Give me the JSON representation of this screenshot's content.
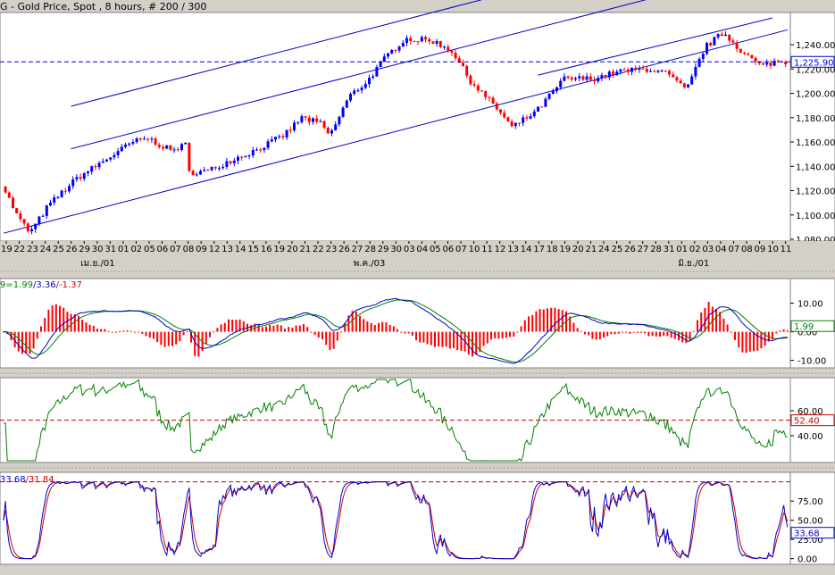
{
  "chart_title": "G - Gold Price, Spot , 8 hours, # 200 / 300",
  "colors": {
    "panel_bg": "#ffffff",
    "outer_bg": "#d4d0c8",
    "bull_candle": "#0000ff",
    "bear_candle": "#ff0000",
    "channel_line": "#0000cc",
    "price_ref_line": "#0000cc",
    "macd_line": "#0000cc",
    "macd_signal": "#008000",
    "macd_hist": "#ff0000",
    "rsi_line": "#008000",
    "rsi_ref_line": "#cc0000",
    "stoch_k": "#0000cc",
    "stoch_d": "#cc0000",
    "stoch_ref_line": "#cc0000"
  },
  "chart_data": [
    {
      "type": "candlestick",
      "title": "G - Gold Price, Spot , 8 hours, # 200 / 300",
      "ylim": [
        1080,
        1265
      ],
      "y_ticks": [
        1080,
        1100,
        1120,
        1140,
        1160,
        1180,
        1200,
        1220,
        1240
      ],
      "y_tick_labels": [
        "1,080.00",
        "1,100.00",
        "1,120.00",
        "1,140.00",
        "1,160.00",
        "1,180.00",
        "1,200.00",
        "1,220.00",
        "1,240.00"
      ],
      "current_price_label": "1,225.90",
      "current_price": 1225.9,
      "channel": {
        "slope": 0.4,
        "lower_start": 1085,
        "middle_start": 1140,
        "upper_start": 1175
      },
      "x_date_labels": [
        "19",
        "22",
        "23",
        "24",
        "25",
        "26",
        "29",
        "30",
        "31",
        "01",
        "02",
        "05",
        "06",
        "07",
        "08",
        "09",
        "12",
        "13",
        "14",
        "15",
        "16",
        "19",
        "20",
        "21",
        "22",
        "23",
        "26",
        "27",
        "28",
        "29",
        "30",
        "03",
        "04",
        "05",
        "06",
        "07",
        "10",
        "11",
        "12",
        "13",
        "14",
        "17",
        "18",
        "19",
        "20",
        "21",
        "24",
        "25",
        "26",
        "27",
        "28",
        "31",
        "01",
        "02",
        "03",
        "04",
        "07",
        "08",
        "09",
        "10",
        "11"
      ],
      "month_labels": [
        {
          "text": "เม.ย./01",
          "at_label": 6
        },
        {
          "text": "พ.ค./03",
          "at_label": 27
        },
        {
          "text": "มิ.ย./01",
          "at_label": 52
        }
      ],
      "keypoints": [
        [
          0,
          1126
        ],
        [
          8,
          1100
        ],
        [
          15,
          1085
        ],
        [
          25,
          1108
        ],
        [
          40,
          1130
        ],
        [
          55,
          1145
        ],
        [
          70,
          1160
        ],
        [
          78,
          1163
        ],
        [
          90,
          1153
        ],
        [
          99,
          1158
        ],
        [
          100,
          1135
        ],
        [
          110,
          1136
        ],
        [
          122,
          1145
        ],
        [
          135,
          1153
        ],
        [
          150,
          1165
        ],
        [
          160,
          1180
        ],
        [
          170,
          1175
        ],
        [
          175,
          1165
        ],
        [
          185,
          1197
        ],
        [
          195,
          1210
        ],
        [
          205,
          1230
        ],
        [
          215,
          1245
        ],
        [
          230,
          1243
        ],
        [
          240,
          1235
        ],
        [
          250,
          1210
        ],
        [
          265,
          1186
        ],
        [
          272,
          1172
        ],
        [
          285,
          1185
        ],
        [
          300,
          1212
        ],
        [
          315,
          1212
        ],
        [
          330,
          1218
        ],
        [
          345,
          1220
        ],
        [
          355,
          1216
        ],
        [
          365,
          1202
        ],
        [
          375,
          1238
        ],
        [
          385,
          1250
        ],
        [
          395,
          1234
        ],
        [
          405,
          1222
        ],
        [
          412,
          1226
        ]
      ]
    },
    {
      "type": "line",
      "title": "MACD",
      "legend_prefix": "9=",
      "legend_value_1": "1.99",
      "legend_sep_1": "/",
      "legend_value_2": "3.36",
      "legend_sep_2": "/",
      "legend_value_3": "-1.37",
      "ylim": [
        -12,
        18
      ],
      "y_ticks": [
        -10,
        0,
        10
      ],
      "y_tick_labels": [
        "-10.00",
        "0.00",
        "10.00"
      ],
      "current_label": "1.99",
      "current_value": 1.99
    },
    {
      "type": "line",
      "title": "RSI",
      "ylim": [
        20,
        85
      ],
      "y_ticks": [
        40,
        60
      ],
      "y_tick_labels": [
        "40.00",
        "60.00"
      ],
      "ref_level": 52.4,
      "current_label": "52.40"
    },
    {
      "type": "line",
      "title": "Stochastic",
      "legend_value_1": "33.68",
      "legend_sep": "/",
      "legend_value_2": "31.84",
      "ylim": [
        -5,
        110
      ],
      "y_ticks": [
        0,
        25,
        50,
        75
      ],
      "y_tick_labels": [
        "0.00",
        "25.00",
        "50.00",
        "75.00"
      ],
      "ref_level": 100,
      "current_label": "33.68"
    }
  ]
}
